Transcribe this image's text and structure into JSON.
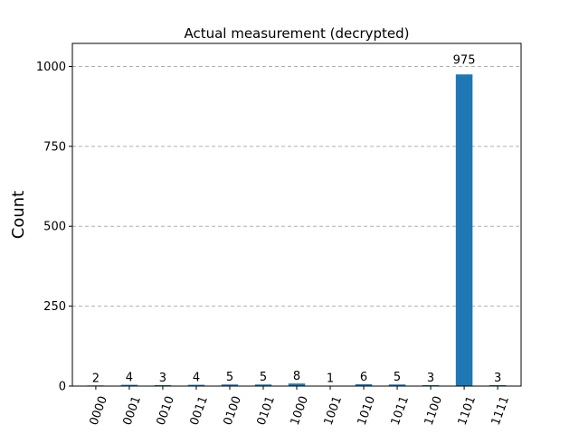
{
  "chart_data": {
    "type": "bar",
    "title": "Actual measurement (decrypted)",
    "xlabel": "",
    "ylabel": "Count",
    "categories": [
      "0000",
      "0001",
      "0010",
      "0011",
      "0100",
      "0101",
      "1000",
      "1001",
      "1010",
      "1011",
      "1100",
      "1101",
      "1111"
    ],
    "values": [
      2,
      4,
      3,
      4,
      5,
      5,
      8,
      1,
      6,
      5,
      3,
      975,
      3
    ],
    "ylim": [
      0,
      1072
    ],
    "yticks": [
      0,
      250,
      500,
      750,
      1000
    ],
    "grid": "y-dashed",
    "bar_color": "#1f77b4",
    "grid_color": "#b0b0b0"
  }
}
